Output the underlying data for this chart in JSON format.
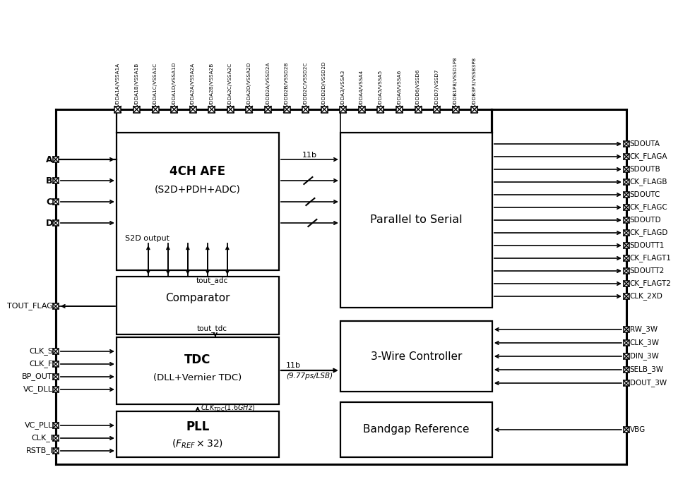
{
  "bg_color": "#ffffff",
  "power_pins": [
    "VDDA1A/VSSA1A",
    "VDDA1B/VSSA1B",
    "VDDA1C/VSSA1C",
    "VDDA1D/VSSA1D",
    "VDDA2A/VSSA2A",
    "VDDA2B/VSSA2B",
    "VDDA2C/VSSA2C",
    "VDDA2D/VSSA2D",
    "VDDD2A/VSSD2A",
    "VDDD2B/VSSD2B",
    "VDDD2C/VSSD2C",
    "VDDD2D/VSSD2D",
    "VDDA3/VSSA3",
    "VDDA4/VSSA4",
    "VDDA5/VSSA5",
    "VDDA6/VSSA6",
    "VDDD6/VSSD6",
    "VDDD7/VSSD7",
    "VDDB1P8/VSSD1P8",
    "VDDB3P3/VSSB3P8"
  ],
  "left_pins_A": [
    "A",
    "B",
    "C",
    "D"
  ],
  "left_pins_B": [
    "CLK_S",
    "CLK_F",
    "BP_OUT",
    "VC_DLL"
  ],
  "left_pins_C": [
    "VC_PLL",
    "CLK_I",
    "RSTB_I"
  ],
  "left_pin_tout": "TOUT_FLAG",
  "right_pins_top": [
    "SDOUTA",
    "CK_FLAGA",
    "SDOUTB",
    "CK_FLAGB",
    "SDOUTC",
    "CK_FLAGC",
    "SDOUTD",
    "CK_FLAGD",
    "SDOUTT1",
    "CK_FLAGT1",
    "SDOUTT2",
    "CK_FLAGT2",
    "CLK_2XD"
  ],
  "right_pins_mid": [
    "RW_3W",
    "CLK_3W",
    "DIN_3W",
    "SELB_3W",
    "DOUT_3W"
  ],
  "right_pin_bot": "VBG"
}
